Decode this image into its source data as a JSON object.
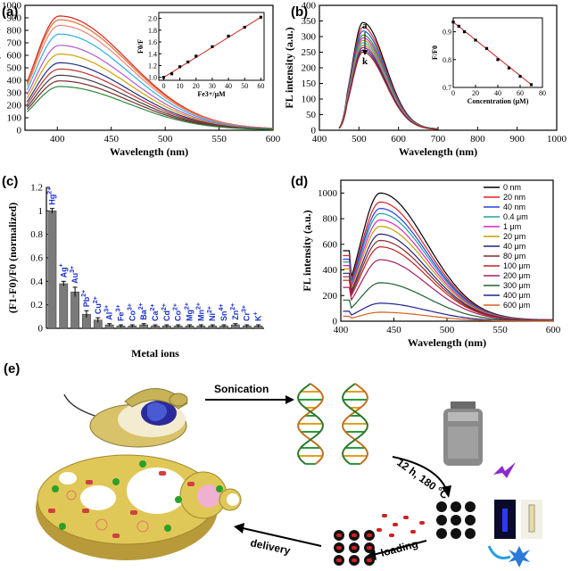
{
  "chart_data": [
    {
      "panel": "(a)",
      "type": "line",
      "xlabel": "Wavelength (nm)",
      "ylabel": "FL intensity (a.u.)",
      "xlim": [
        370,
        600
      ],
      "ylim": [
        0,
        1000
      ],
      "xticks": [
        400,
        450,
        500,
        550,
        600
      ],
      "yticks": [
        0,
        100,
        200,
        300,
        400,
        500,
        600,
        700,
        800,
        900,
        1000
      ],
      "peak_x": 402,
      "x_start": 372,
      "x_end": 600,
      "curves": [
        {
          "peak": 915,
          "color": "#d62020"
        },
        {
          "peak": 885,
          "color": "#e07020"
        },
        {
          "peak": 840,
          "color": "#f08080"
        },
        {
          "peak": 770,
          "color": "#30b0e0"
        },
        {
          "peak": 680,
          "color": "#b05ad0"
        },
        {
          "peak": 610,
          "color": "#d0a000"
        },
        {
          "peak": 540,
          "color": "#203080"
        },
        {
          "peak": 490,
          "color": "#c03030"
        },
        {
          "peak": 440,
          "color": "#404040"
        },
        {
          "peak": 395,
          "color": "#7a2a2a"
        },
        {
          "peak": 350,
          "color": "#2a8a3a"
        }
      ],
      "inset": {
        "ylabel": "F0/F",
        "xlabel": "Fe3+/μM",
        "xlim": [
          -3,
          62
        ],
        "ylim": [
          0.95,
          2.1
        ],
        "xticks": [
          0,
          10,
          20,
          30,
          40,
          50,
          60
        ],
        "yticks": [
          1.0,
          1.2,
          1.4,
          1.6,
          1.8,
          2.0
        ],
        "x": [
          0,
          5,
          10,
          15,
          20,
          30,
          40,
          50,
          60
        ],
        "y": [
          1.0,
          1.06,
          1.18,
          1.26,
          1.36,
          1.52,
          1.7,
          1.85,
          2.02
        ]
      }
    },
    {
      "panel": "(b)",
      "type": "line",
      "xlabel": "Wavelength (nm)",
      "ylabel": "FL intensity (a.u.)",
      "xlim": [
        400,
        1000
      ],
      "ylim": [
        0,
        400
      ],
      "xticks": [
        400,
        500,
        600,
        700,
        800,
        900,
        1000
      ],
      "yticks": [
        0,
        50,
        100,
        150,
        200,
        250,
        300,
        350,
        400
      ],
      "label_a": "a",
      "label_k": "k",
      "peak_x": 510,
      "x_start": 450,
      "x_end": 700,
      "curves": [
        {
          "peak": 345,
          "color": "#000000"
        },
        {
          "peak": 330,
          "color": "#e03030"
        },
        {
          "peak": 318,
          "color": "#3050e0"
        },
        {
          "peak": 305,
          "color": "#20a020"
        },
        {
          "peak": 296,
          "color": "#e020e0"
        },
        {
          "peak": 288,
          "color": "#a0a000"
        },
        {
          "peak": 280,
          "color": "#20c0c0"
        },
        {
          "peak": 272,
          "color": "#d08030"
        },
        {
          "peak": 265,
          "color": "#8020a0"
        },
        {
          "peak": 257,
          "color": "#402080"
        },
        {
          "peak": 250,
          "color": "#a03020"
        }
      ],
      "inset": {
        "ylabel": "F/F0",
        "xlabel": "Concentration (μM)",
        "xlim": [
          0,
          80
        ],
        "ylim": [
          0.7,
          0.95
        ],
        "xticks": [
          0,
          20,
          40,
          60,
          80
        ],
        "yticks": [
          0.7,
          0.8,
          0.9
        ],
        "x": [
          0,
          5,
          10,
          20,
          30,
          40,
          50,
          60,
          70
        ],
        "y": [
          0.935,
          0.92,
          0.9,
          0.87,
          0.84,
          0.8,
          0.77,
          0.74,
          0.71
        ]
      }
    },
    {
      "panel": "(c)",
      "type": "bar",
      "xlabel": "Metal ions",
      "ylabel": "(F1-F0)/F0 (normalized)",
      "ylim": [
        0,
        1.2
      ],
      "yticks": [
        0,
        0.2,
        0.4,
        0.6,
        0.8,
        1.0,
        1.2
      ],
      "categories": [
        "Hg2+",
        "Ag+",
        "Au3+",
        "Pb2+",
        "Cu2+",
        "Al3+",
        "Fe3+",
        "Co3+",
        "Ba2+",
        "Ca2+",
        "Cd2+",
        "Co2+",
        "Mg2+",
        "Mn2+",
        "Ni2+",
        "Sn4+",
        "Zn2+",
        "Cr3+",
        "K+"
      ],
      "values": [
        1.0,
        0.38,
        0.31,
        0.12,
        0.07,
        0.03,
        0.02,
        0.02,
        0.03,
        0.02,
        0.02,
        0.02,
        0.02,
        0.02,
        0.02,
        0.02,
        0.03,
        0.02,
        0.02
      ],
      "errors": [
        0.02,
        0.02,
        0.04,
        0.03,
        0.02,
        0.01,
        0.01,
        0.01,
        0.01,
        0.01,
        0.01,
        0.01,
        0.01,
        0.01,
        0.01,
        0.01,
        0.01,
        0.01,
        0.01
      ],
      "ion_labels": [
        {
          "base": "Hg",
          "sup": "2+"
        },
        {
          "base": "Ag",
          "sup": "+"
        },
        {
          "base": "Au",
          "sup": "3+"
        },
        {
          "base": "Pb",
          "sup": "2+"
        },
        {
          "base": "Cu",
          "sup": "2+"
        },
        {
          "base": "Al",
          "sup": "3+"
        },
        {
          "base": "Fe",
          "sup": "3+"
        },
        {
          "base": "Co",
          "sup": "3+"
        },
        {
          "base": "Ba",
          "sup": "2+"
        },
        {
          "base": "Ca",
          "sup": "2+"
        },
        {
          "base": "Cd",
          "sup": "2+"
        },
        {
          "base": "Co",
          "sup": "2+"
        },
        {
          "base": "Mg",
          "sup": "2+"
        },
        {
          "base": "Mn",
          "sup": "2+"
        },
        {
          "base": "Ni",
          "sup": "2+"
        },
        {
          "base": "Sn",
          "sup": "4+"
        },
        {
          "base": "Zn",
          "sup": "2+"
        },
        {
          "base": "Cr",
          "sup": "3+"
        },
        {
          "base": "K",
          "sup": "+"
        }
      ]
    },
    {
      "panel": "(d)",
      "type": "line",
      "xlabel": "Wavelength (nm)",
      "ylabel": "FL intensity (a.u.)",
      "xlim": [
        400,
        600
      ],
      "ylim": [
        0,
        1100
      ],
      "xticks": [
        400,
        450,
        500,
        550,
        600
      ],
      "yticks": [
        0,
        200,
        400,
        600,
        800,
        1000
      ],
      "peak_x": 437,
      "x_start": 402,
      "x_end": 600,
      "series": [
        {
          "name": "0 nm",
          "peak": 1000,
          "color": "#000000"
        },
        {
          "name": "20 nm",
          "peak": 930,
          "color": "#e02020"
        },
        {
          "name": "40 nm",
          "peak": 880,
          "color": "#2040e0"
        },
        {
          "name": "0.4 μm",
          "peak": 840,
          "color": "#20a0a0"
        },
        {
          "name": "1 μm",
          "peak": 790,
          "color": "#e020c0"
        },
        {
          "name": "20 μm",
          "peak": 740,
          "color": "#c0a000"
        },
        {
          "name": "40 μm",
          "peak": 680,
          "color": "#202080"
        },
        {
          "name": "80 μm",
          "peak": 630,
          "color": "#8a2a2a"
        },
        {
          "name": "100 μm",
          "peak": 580,
          "color": "#c02020"
        },
        {
          "name": "200 μm",
          "peak": 480,
          "color": "#a02060"
        },
        {
          "name": "300 μm",
          "peak": 300,
          "color": "#206030"
        },
        {
          "name": "400 μm",
          "peak": 140,
          "color": "#202090"
        },
        {
          "name": "600 μm",
          "peak": 70,
          "color": "#d06020"
        }
      ]
    }
  ],
  "panel_e": {
    "letter": "(e)",
    "sonication_label": "Sonication",
    "reaction_label": "12 h, 180 °C",
    "loading_label": "loading",
    "delivery_label": "delivery"
  }
}
